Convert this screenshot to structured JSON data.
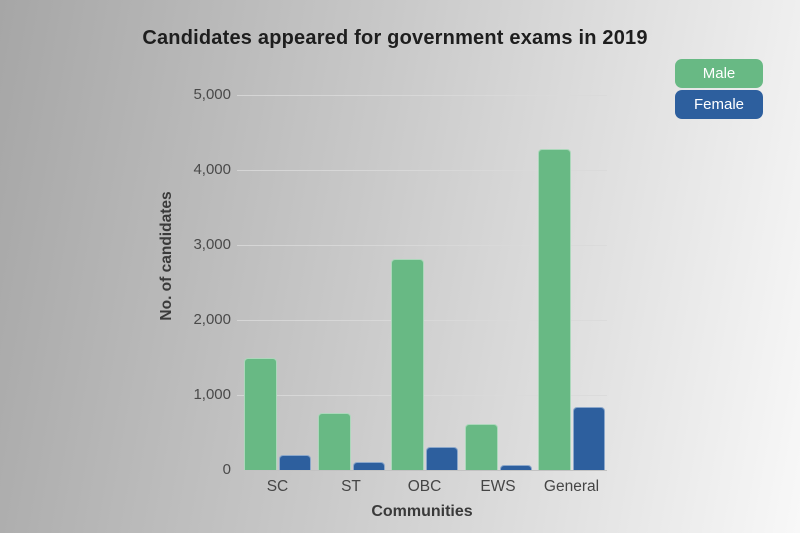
{
  "title": "Candidates appeared for government exams in 2019",
  "chart_data": {
    "type": "bar",
    "title": "Candidates appeared for government exams in 2019",
    "categories": [
      "SC",
      "ST",
      "OBC",
      "EWS",
      "General"
    ],
    "series": [
      {
        "name": "Male",
        "color": "#68b984",
        "values": [
          1500,
          760,
          2820,
          620,
          4280
        ]
      },
      {
        "name": "Female",
        "color": "#2d5f9e",
        "values": [
          200,
          110,
          310,
          70,
          840
        ]
      }
    ],
    "xlabel": "Communities",
    "ylabel": "No. of candidates",
    "ylim": [
      0,
      5000
    ],
    "yticks": [
      {
        "value": 0,
        "label": "0"
      },
      {
        "value": 1000,
        "label": "1,000"
      },
      {
        "value": 2000,
        "label": "2,000"
      },
      {
        "value": 3000,
        "label": "3,000"
      },
      {
        "value": 4000,
        "label": "4,000"
      },
      {
        "value": 5000,
        "label": "5,000"
      }
    ],
    "grid": true,
    "legend_position": "top-right"
  },
  "colors": {
    "background_left": "#a6a6a6",
    "background_right": "#f8f8f8",
    "male_bar": "#68b984",
    "female_bar": "#2d5f9e",
    "gridline": "#d9d9d9",
    "title_text": "#1e1e1e",
    "axis_text": "#4a4a4a"
  }
}
